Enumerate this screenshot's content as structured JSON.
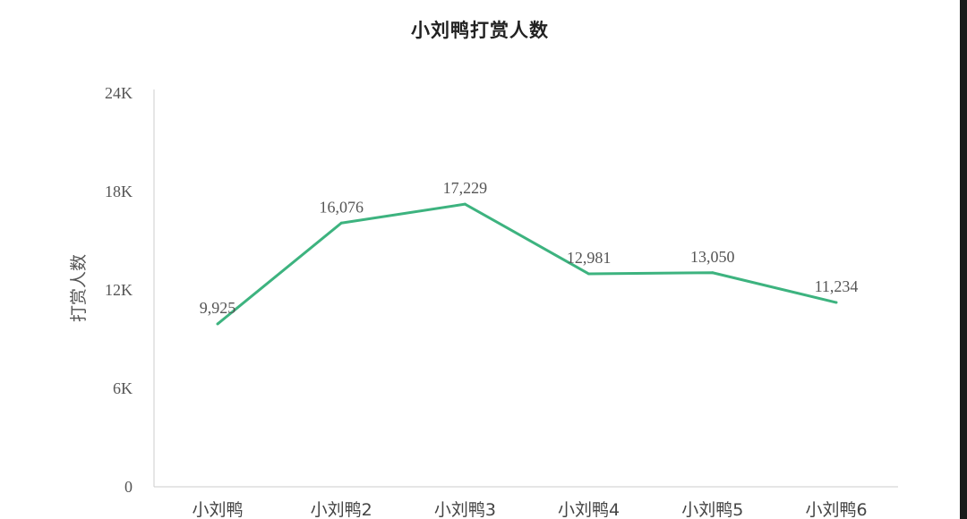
{
  "chart_data": {
    "type": "line",
    "title": "小刘鸭打赏人数",
    "xlabel": "",
    "ylabel": "打赏人数",
    "categories": [
      "小刘鸭",
      "小刘鸭2",
      "小刘鸭3",
      "小刘鸭4",
      "小刘鸭5",
      "小刘鸭6"
    ],
    "series": [
      {
        "values": [
          9925,
          16076,
          17229,
          12981,
          13050,
          11234
        ],
        "labels": [
          "9,925",
          "16,076",
          "17,229",
          "12,981",
          "13,050",
          "11,234"
        ],
        "color": "#3db37f"
      }
    ],
    "ylim": [
      0,
      24000
    ],
    "yticks": [
      0,
      6000,
      12000,
      18000,
      24000
    ],
    "ytick_labels": [
      "0",
      "6K",
      "12K",
      "18K",
      "24K"
    ],
    "grid": false,
    "legend": "none"
  }
}
